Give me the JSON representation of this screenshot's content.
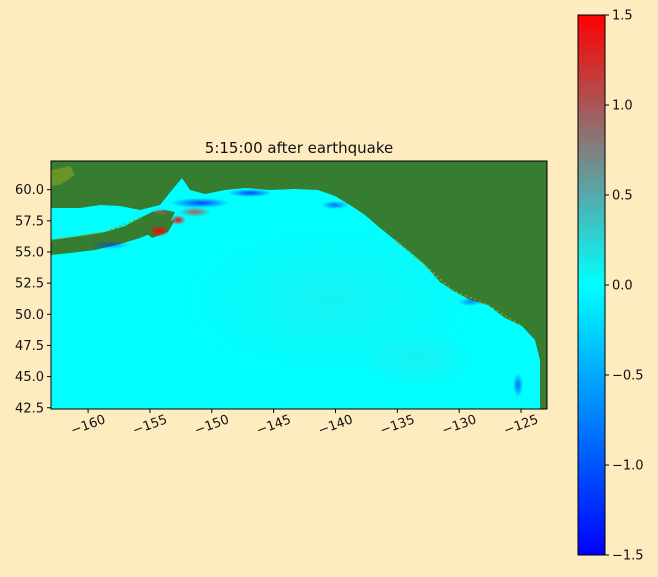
{
  "chart_data": {
    "type": "heatmap",
    "title": "5:15:00 after earthquake",
    "xlabel": "",
    "ylabel": "",
    "xlim": [
      -163,
      -122.9
    ],
    "ylim": [
      42.4,
      62.3
    ],
    "xticks": [
      -160,
      -155,
      -150,
      -145,
      -140,
      -135,
      -130,
      -125
    ],
    "xtick_labels": [
      "−160",
      "−155",
      "−150",
      "−145",
      "−140",
      "−135",
      "−130",
      "−125"
    ],
    "yticks": [
      60.0,
      57.5,
      55.0,
      52.5,
      50.0,
      47.5,
      45.0,
      42.5
    ],
    "ytick_labels": [
      "60.0",
      "57.5",
      "55.0",
      "52.5",
      "50.0",
      "47.5",
      "45.0",
      "42.5"
    ],
    "grid": false,
    "colorbar": {
      "range": [
        -1.5,
        1.5
      ],
      "ticks": [
        1.5,
        1.0,
        0.5,
        0.0,
        -0.5,
        -1.0,
        -1.5
      ],
      "tick_labels": [
        "1.5",
        "1.0",
        "0.5",
        "0.0",
        "−0.5",
        "−1.0",
        "−1.5"
      ],
      "colors": [
        "#0000ff",
        "#00ffff",
        "#808080",
        "#ff0000"
      ],
      "placement": "right"
    },
    "land_color": "#367c31",
    "ocean_color": "#00ffff"
  }
}
